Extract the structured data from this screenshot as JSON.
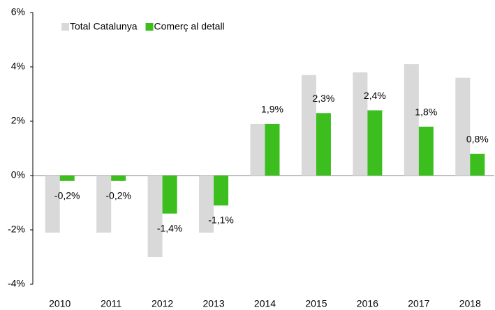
{
  "chart_data": {
    "type": "bar",
    "categories": [
      "2010",
      "2011",
      "2012",
      "2013",
      "2014",
      "2015",
      "2016",
      "2017",
      "2018"
    ],
    "series": [
      {
        "name": "Total Catalunya",
        "color": "#d9d9d9",
        "values": [
          -2.1,
          -2.1,
          -3.0,
          -2.1,
          1.9,
          3.7,
          3.8,
          4.1,
          3.6
        ]
      },
      {
        "name": "Comerç al detall",
        "color": "#3cbf1e",
        "values": [
          -0.2,
          -0.2,
          -1.4,
          -1.1,
          1.9,
          2.3,
          2.4,
          1.8,
          0.8
        ],
        "value_labels": [
          "-0,2%",
          "-0,2%",
          "-1,4%",
          "-1,1%",
          "1,9%",
          "2,3%",
          "2,4%",
          "1,8%",
          "0,8%"
        ]
      }
    ],
    "ylim": [
      -4,
      6
    ],
    "yticks": [
      {
        "value": -4,
        "label": "-4%"
      },
      {
        "value": -2,
        "label": "-2%"
      },
      {
        "value": 0,
        "label": "0%"
      },
      {
        "value": 2,
        "label": "2%"
      },
      {
        "value": 4,
        "label": "4%"
      },
      {
        "value": 6,
        "label": "6%"
      }
    ],
    "legend": "top-left"
  }
}
